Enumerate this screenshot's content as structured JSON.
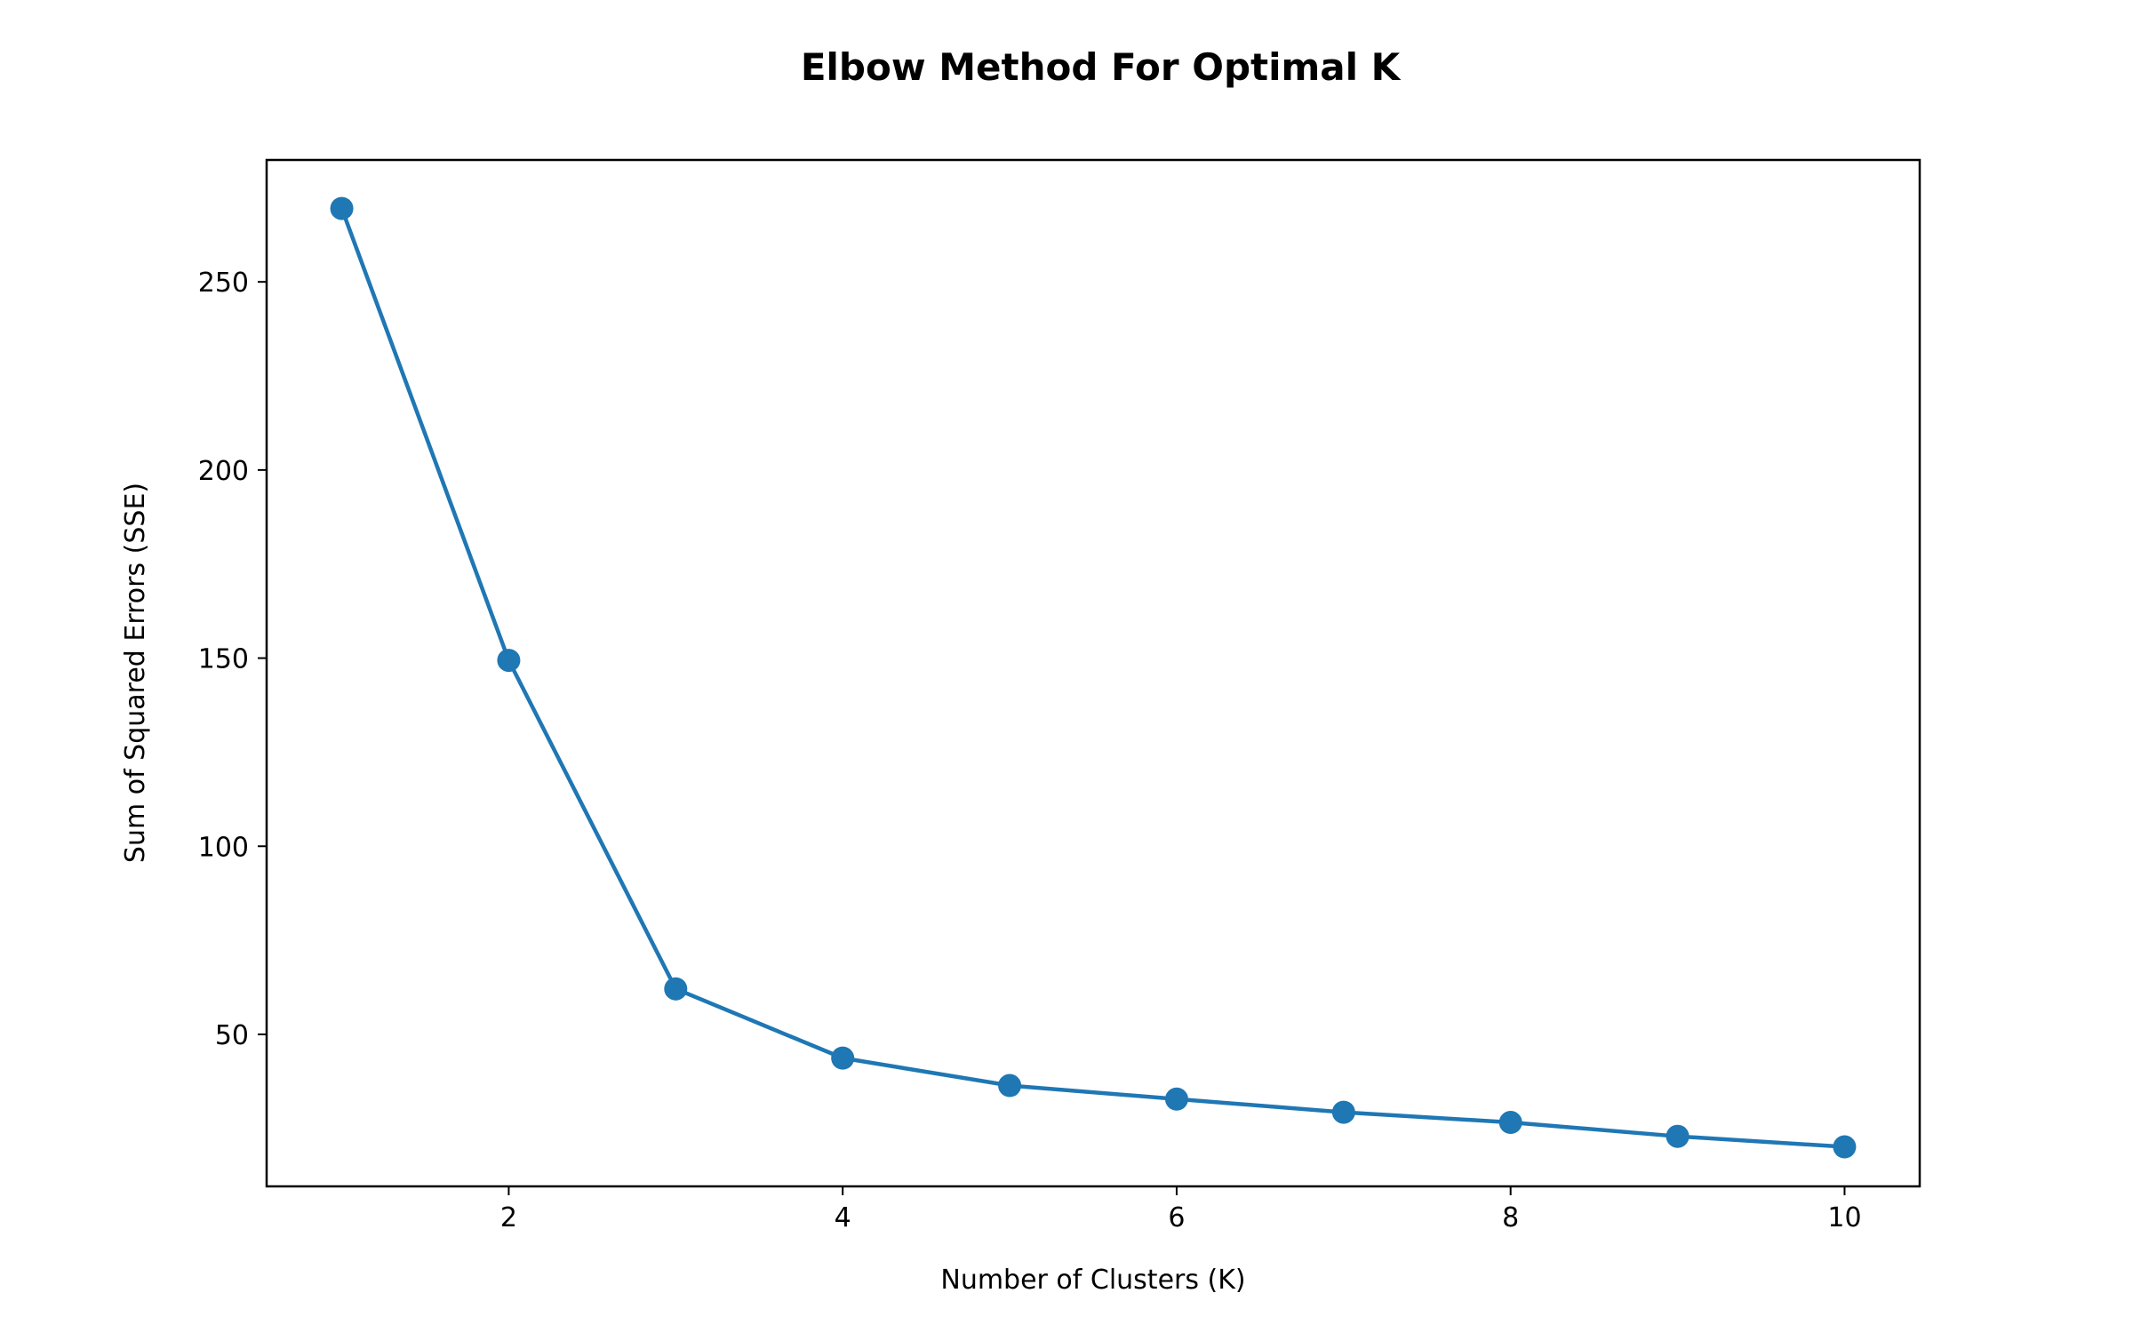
{
  "chart_data": {
    "type": "line",
    "title": "Elbow Method For Optimal K",
    "xlabel": "Number of Clusters (K)",
    "ylabel": "Sum of Squared Errors (SSE)",
    "x": [
      1,
      2,
      3,
      4,
      5,
      6,
      7,
      8,
      9,
      10
    ],
    "series": [
      {
        "values": [
          269.5,
          149.4,
          62.1,
          43.7,
          36.4,
          32.8,
          29.3,
          26.6,
          22.9,
          20.1
        ],
        "color": "#1f77b4",
        "marker": "circle"
      }
    ],
    "xlim": [
      0.55,
      10.45
    ],
    "ylim": [
      9.6,
      282.4
    ],
    "xticks": [
      2,
      4,
      6,
      8,
      10
    ],
    "yticks": [
      50,
      100,
      150,
      200,
      250
    ],
    "grid": false,
    "legend": "none"
  }
}
